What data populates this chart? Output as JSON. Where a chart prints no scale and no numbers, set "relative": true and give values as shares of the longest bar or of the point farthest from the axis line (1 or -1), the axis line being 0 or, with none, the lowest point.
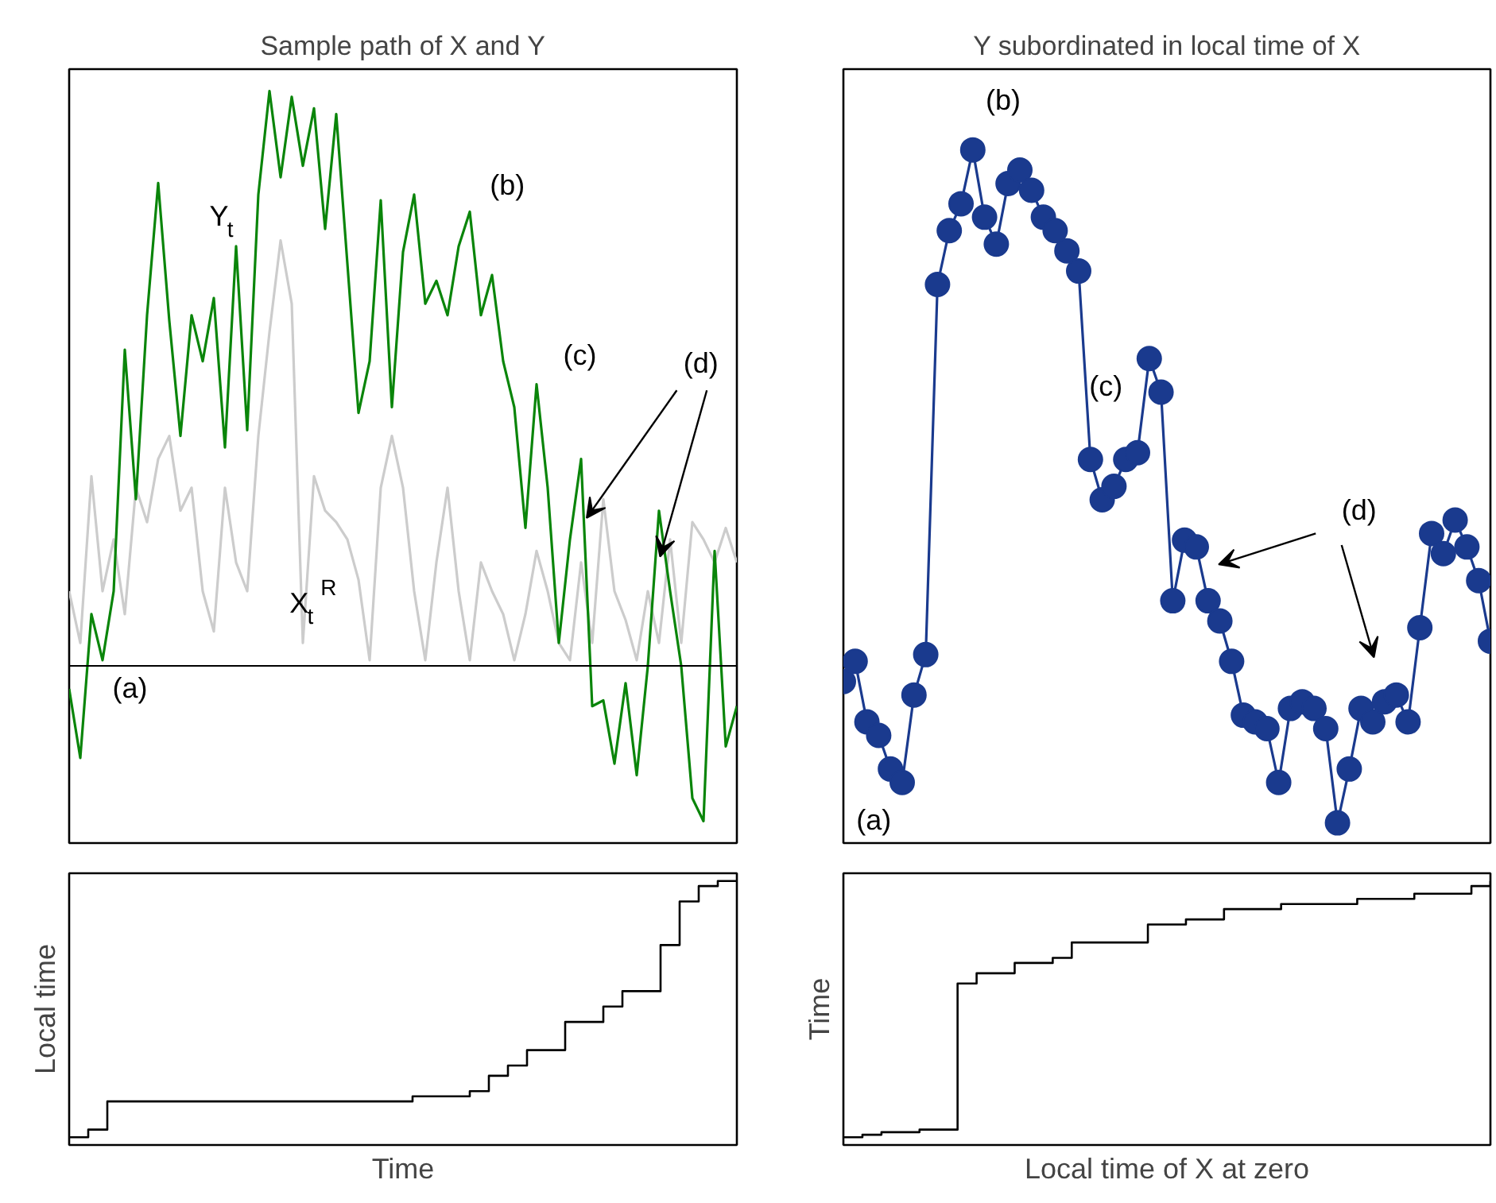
{
  "chart_data": [
    {
      "type": "line",
      "title": "Sample path of X and Y",
      "relative": true,
      "categories": [
        null,
        null,
        null,
        null,
        null,
        null,
        null,
        null,
        null,
        null,
        null,
        null,
        null,
        null,
        null,
        null,
        null,
        null,
        null,
        null,
        null,
        null,
        null,
        null,
        null,
        null,
        null,
        null,
        null,
        null,
        null,
        null,
        null,
        null,
        null,
        null,
        null,
        null,
        null,
        null,
        null,
        null,
        null,
        null,
        null,
        null,
        null,
        null,
        null,
        null,
        null,
        null,
        null,
        null,
        null,
        null,
        null,
        null,
        null,
        null,
        null
      ],
      "series": [
        {
          "name": "X$_{t}$$^{R}$",
          "color": "#cccccc",
          "values": [
            0.13,
            0.04,
            0.33,
            0.13,
            0.22,
            0.09,
            0.31,
            0.25,
            0.36,
            0.4,
            0.27,
            0.31,
            0.13,
            0.06,
            0.31,
            0.18,
            0.13,
            0.4,
            0.58,
            0.74,
            0.63,
            0.04,
            0.33,
            0.27,
            0.25,
            0.22,
            0.15,
            0.01,
            0.31,
            0.4,
            0.31,
            0.13,
            0.01,
            0.18,
            0.31,
            0.13,
            0.01,
            0.18,
            0.13,
            0.09,
            0.01,
            0.09,
            0.2,
            0.13,
            0.04,
            0.01,
            0.18,
            0.04,
            0.29,
            0.13,
            0.08,
            0.01,
            0.13,
            0.04,
            0.22,
            0.04,
            0.25,
            0.22,
            0.18,
            0.24,
            0.18
          ]
        },
        {
          "name": "Y$_{t}$",
          "color": "#0a850a",
          "values": [
            -0.04,
            -0.16,
            0.09,
            0.01,
            0.13,
            0.55,
            0.29,
            0.61,
            0.84,
            0.6,
            0.4,
            0.61,
            0.53,
            0.64,
            0.38,
            0.73,
            0.41,
            0.82,
            1.0,
            0.85,
            0.99,
            0.87,
            0.97,
            0.76,
            0.96,
            0.7,
            0.44,
            0.53,
            0.81,
            0.45,
            0.72,
            0.82,
            0.63,
            0.67,
            0.61,
            0.73,
            0.79,
            0.61,
            0.68,
            0.53,
            0.45,
            0.24,
            0.49,
            0.31,
            0.04,
            0.22,
            0.36,
            -0.07,
            -0.06,
            -0.17,
            -0.03,
            -0.19,
            0.0,
            0.27,
            0.13,
            0.0,
            -0.23,
            -0.27,
            0.2,
            -0.14,
            -0.07
          ]
        }
      ],
      "annotations": [
        "(a)",
        "(b)",
        "(c)",
        "(d)"
      ]
    },
    {
      "type": "line",
      "title": "Y subordinated in local time of X",
      "relative": true,
      "marker": "circle",
      "categories": [
        null,
        null,
        null,
        null,
        null,
        null,
        null,
        null,
        null,
        null,
        null,
        null,
        null,
        null,
        null,
        null,
        null,
        null,
        null,
        null,
        null,
        null,
        null,
        null,
        null,
        null,
        null,
        null,
        null,
        null,
        null,
        null,
        null,
        null,
        null,
        null,
        null,
        null,
        null,
        null,
        null,
        null,
        null,
        null,
        null,
        null,
        null,
        null,
        null,
        null,
        null,
        null,
        null,
        null,
        null,
        null
      ],
      "series": [
        {
          "color": "#1a3a8e",
          "values": [
            0.21,
            0.24,
            0.15,
            0.13,
            0.08,
            0.06,
            0.19,
            0.25,
            0.8,
            0.88,
            0.92,
            1.0,
            0.9,
            0.86,
            0.95,
            0.97,
            0.94,
            0.9,
            0.88,
            0.85,
            0.82,
            0.54,
            0.48,
            0.5,
            0.54,
            0.55,
            0.69,
            0.64,
            0.33,
            0.42,
            0.41,
            0.33,
            0.3,
            0.24,
            0.16,
            0.15,
            0.14,
            0.06,
            0.17,
            0.18,
            0.17,
            0.14,
            0,
            0.08,
            0.17,
            0.15,
            0.18,
            0.19,
            0.15,
            0.29,
            0.43,
            0.4,
            0.45,
            0.41,
            0.36,
            0.27
          ]
        }
      ],
      "annotations": [
        "(a)",
        "(b)",
        "(c)",
        "(d)"
      ]
    },
    {
      "type": "step",
      "xlabel": "Time",
      "ylabel": "Local time",
      "relative": true,
      "categories": [
        null,
        null,
        null,
        null,
        null,
        null,
        null,
        null,
        null,
        null,
        null,
        null,
        null,
        null,
        null,
        null,
        null,
        null,
        null,
        null,
        null,
        null,
        null,
        null,
        null,
        null,
        null,
        null,
        null,
        null,
        null,
        null,
        null,
        null,
        null,
        null
      ],
      "series": [
        {
          "color": "#000000",
          "values": [
            0,
            0.03,
            0.14,
            0.14,
            0.14,
            0.14,
            0.14,
            0.14,
            0.14,
            0.14,
            0.14,
            0.14,
            0.14,
            0.14,
            0.14,
            0.14,
            0.14,
            0.14,
            0.16,
            0.16,
            0.16,
            0.18,
            0.24,
            0.28,
            0.34,
            0.34,
            0.45,
            0.45,
            0.51,
            0.57,
            0.57,
            0.75,
            0.92,
            0.98,
            1.0,
            1.0
          ]
        }
      ]
    },
    {
      "type": "step",
      "xlabel": "Local time of X at zero",
      "ylabel": "Time",
      "relative": true,
      "categories": [
        null,
        null,
        null,
        null,
        null,
        null,
        null,
        null,
        null,
        null,
        null,
        null,
        null,
        null,
        null,
        null,
        null,
        null,
        null,
        null,
        null,
        null,
        null,
        null,
        null,
        null,
        null,
        null,
        null,
        null,
        null,
        null,
        null,
        null,
        null
      ],
      "series": [
        {
          "color": "#000000",
          "values": [
            0,
            0.01,
            0.02,
            0.02,
            0.03,
            0.03,
            0.6,
            0.64,
            0.64,
            0.68,
            0.68,
            0.7,
            0.76,
            0.76,
            0.76,
            0.76,
            0.83,
            0.83,
            0.85,
            0.85,
            0.89,
            0.89,
            0.89,
            0.91,
            0.91,
            0.91,
            0.91,
            0.93,
            0.93,
            0.93,
            0.95,
            0.95,
            0.95,
            0.98,
            1.0
          ]
        }
      ]
    }
  ]
}
